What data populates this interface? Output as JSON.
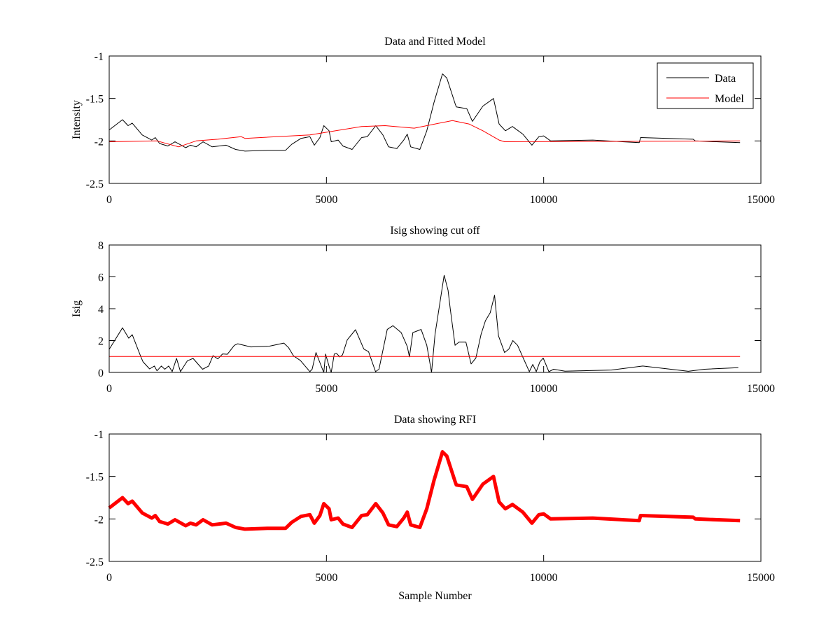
{
  "figure": {
    "background": "#ffffff"
  },
  "chart_data": [
    {
      "type": "line",
      "title": "Data and Fitted Model",
      "xlabel": "",
      "ylabel": "Intensity",
      "xlim": [
        0,
        15000
      ],
      "ylim": [
        -2.5,
        -1
      ],
      "xticks": [
        0,
        5000,
        10000,
        15000
      ],
      "yticks": [
        -2.5,
        -2,
        -1.5,
        -1
      ],
      "ytick_labels": [
        "-2.5",
        "-2",
        "-1.5",
        "-1"
      ],
      "grid": false,
      "legend": {
        "position": "top-right",
        "entries": [
          "Data",
          "Model"
        ]
      },
      "series": [
        {
          "name": "Data",
          "color": "#000000",
          "width": 1,
          "x": [
            0,
            306,
            435,
            530,
            760,
            980,
            1060,
            1160,
            1350,
            1515,
            1760,
            1870,
            2000,
            2160,
            2370,
            2690,
            2910,
            3125,
            3660,
            4060,
            4200,
            4415,
            4620,
            4720,
            4850,
            4940,
            5060,
            5110,
            5270,
            5380,
            5590,
            5810,
            5940,
            6135,
            6300,
            6430,
            6620,
            6780,
            6860,
            6940,
            7150,
            7310,
            7475,
            7670,
            7770,
            7960,
            7990,
            8230,
            8360,
            8600,
            8845,
            8975,
            9120,
            9280,
            9520,
            9730,
            9890,
            10000,
            10160,
            11130,
            12200,
            12230,
            13440,
            13490,
            14520
          ],
          "y": [
            -1.87,
            -1.75,
            -1.82,
            -1.79,
            -1.93,
            -1.99,
            -1.96,
            -2.03,
            -2.06,
            -2.01,
            -2.08,
            -2.05,
            -2.07,
            -2.01,
            -2.07,
            -2.05,
            -2.1,
            -2.12,
            -2.11,
            -2.11,
            -2.04,
            -1.97,
            -1.95,
            -2.05,
            -1.96,
            -1.82,
            -1.88,
            -2.01,
            -1.99,
            -2.06,
            -2.1,
            -1.96,
            -1.95,
            -1.82,
            -1.93,
            -2.07,
            -2.09,
            -1.99,
            -1.92,
            -2.07,
            -2.1,
            -1.88,
            -1.55,
            -1.21,
            -1.26,
            -1.56,
            -1.6,
            -1.62,
            -1.77,
            -1.59,
            -1.5,
            -1.8,
            -1.88,
            -1.83,
            -1.92,
            -2.05,
            -1.95,
            -1.94,
            -2.0,
            -1.99,
            -2.02,
            -1.96,
            -1.98,
            -2.0,
            -2.02
          ]
        },
        {
          "name": "Model",
          "color": "#ff0000",
          "width": 1,
          "x": [
            0,
            1100,
            1600,
            2000,
            2500,
            3040,
            3125,
            4620,
            5810,
            6350,
            7020,
            7900,
            8280,
            8600,
            8975,
            9100,
            14520
          ],
          "y": [
            -2.01,
            -2.0,
            -2.07,
            -2.0,
            -1.98,
            -1.95,
            -1.97,
            -1.93,
            -1.83,
            -1.82,
            -1.85,
            -1.76,
            -1.8,
            -1.88,
            -1.99,
            -2.01,
            -2.0
          ]
        }
      ]
    },
    {
      "type": "line",
      "title": "Isig showing cut off",
      "xlabel": "",
      "ylabel": "Isig",
      "xlim": [
        0,
        15000
      ],
      "ylim": [
        0,
        8
      ],
      "xticks": [
        0,
        5000,
        10000,
        15000
      ],
      "yticks": [
        0,
        2,
        4,
        6,
        8
      ],
      "ytick_labels": [
        "0",
        "2",
        "4",
        "6",
        "8"
      ],
      "grid": false,
      "series": [
        {
          "name": "Isig",
          "color": "#000000",
          "width": 1,
          "x": [
            0,
            306,
            450,
            530,
            730,
            780,
            930,
            1040,
            1100,
            1200,
            1280,
            1370,
            1450,
            1550,
            1640,
            1800,
            1930,
            2150,
            2290,
            2390,
            2500,
            2610,
            2720,
            2880,
            2960,
            3260,
            3690,
            4020,
            4130,
            4240,
            4400,
            4620,
            4670,
            4760,
            4910,
            4940,
            4980,
            5070,
            5110,
            5180,
            5230,
            5310,
            5370,
            5480,
            5670,
            5860,
            5970,
            6130,
            6210,
            6400,
            6530,
            6720,
            6860,
            6910,
            6990,
            7180,
            7310,
            7420,
            7500,
            7710,
            7800,
            7850,
            7960,
            8050,
            8210,
            8330,
            8440,
            8560,
            8660,
            8770,
            8870,
            8960,
            9100,
            9200,
            9290,
            9400,
            9530,
            9670,
            9750,
            9830,
            9910,
            9990,
            10120,
            10230,
            10490,
            11560,
            12280,
            13330,
            13700,
            14480
          ],
          "y": [
            1.45,
            2.8,
            2.15,
            2.37,
            0.97,
            0.66,
            0.22,
            0.4,
            0.1,
            0.4,
            0.2,
            0.4,
            0.05,
            0.88,
            0.05,
            0.73,
            0.88,
            0.2,
            0.4,
            1.05,
            0.85,
            1.16,
            1.14,
            1.7,
            1.8,
            1.6,
            1.65,
            1.84,
            1.55,
            1.04,
            0.75,
            0.05,
            0.2,
            1.25,
            0.2,
            0,
            1.15,
            0.3,
            0,
            1.15,
            1.2,
            0.97,
            1.1,
            2.05,
            2.68,
            1.47,
            1.3,
            0.05,
            0.2,
            2.7,
            2.93,
            2.5,
            1.63,
            0.97,
            2.5,
            2.7,
            1.7,
            0,
            2.4,
            6.1,
            5.15,
            4.0,
            1.7,
            1.9,
            1.9,
            0.53,
            0.9,
            2.4,
            3.25,
            3.75,
            4.85,
            2.3,
            1.25,
            1.47,
            2.0,
            1.7,
            0.9,
            0.05,
            0.5,
            0.05,
            0.65,
            0.9,
            0.05,
            0.2,
            0.08,
            0.15,
            0.4,
            0.07,
            0.2,
            0.3
          ]
        },
        {
          "name": "Cut off",
          "color": "#ff0000",
          "width": 1,
          "x": [
            0,
            14520
          ],
          "y": [
            1,
            1
          ]
        }
      ]
    },
    {
      "type": "line",
      "title": "Data showing RFI",
      "xlabel": "Sample Number",
      "ylabel": "",
      "xlim": [
        0,
        15000
      ],
      "ylim": [
        -2.5,
        -1
      ],
      "xticks": [
        0,
        5000,
        10000,
        15000
      ],
      "yticks": [
        -2.5,
        -2,
        -1.5,
        -1
      ],
      "ytick_labels": [
        "-2.5",
        "-2",
        "-1.5",
        "-1"
      ],
      "grid": false,
      "series": [
        {
          "name": "RFI",
          "color": "#ff0000",
          "width": 5,
          "x": [
            0,
            306,
            435,
            530,
            760,
            980,
            1060,
            1160,
            1350,
            1515,
            1760,
            1870,
            2000,
            2160,
            2370,
            2690,
            2910,
            3125,
            3660,
            4060,
            4200,
            4415,
            4620,
            4720,
            4850,
            4940,
            5060,
            5110,
            5270,
            5380,
            5590,
            5810,
            5940,
            6135,
            6300,
            6430,
            6620,
            6780,
            6860,
            6940,
            7150,
            7310,
            7475,
            7670,
            7770,
            7960,
            7990,
            8230,
            8360,
            8600,
            8845,
            8975,
            9120,
            9280,
            9520,
            9730,
            9890,
            10000,
            10160,
            11130,
            12200,
            12230,
            13440,
            13490,
            14520
          ],
          "y": [
            -1.87,
            -1.75,
            -1.82,
            -1.79,
            -1.93,
            -1.99,
            -1.96,
            -2.03,
            -2.06,
            -2.01,
            -2.08,
            -2.05,
            -2.07,
            -2.01,
            -2.07,
            -2.05,
            -2.1,
            -2.12,
            -2.11,
            -2.11,
            -2.04,
            -1.97,
            -1.95,
            -2.05,
            -1.96,
            -1.82,
            -1.88,
            -2.01,
            -1.99,
            -2.06,
            -2.1,
            -1.96,
            -1.95,
            -1.82,
            -1.93,
            -2.07,
            -2.09,
            -1.99,
            -1.92,
            -2.07,
            -2.1,
            -1.88,
            -1.55,
            -1.21,
            -1.26,
            -1.56,
            -1.6,
            -1.62,
            -1.77,
            -1.59,
            -1.5,
            -1.8,
            -1.88,
            -1.83,
            -1.92,
            -2.05,
            -1.95,
            -1.94,
            -2.0,
            -1.99,
            -2.02,
            -1.96,
            -1.98,
            -2.0,
            -2.02
          ]
        }
      ]
    }
  ]
}
